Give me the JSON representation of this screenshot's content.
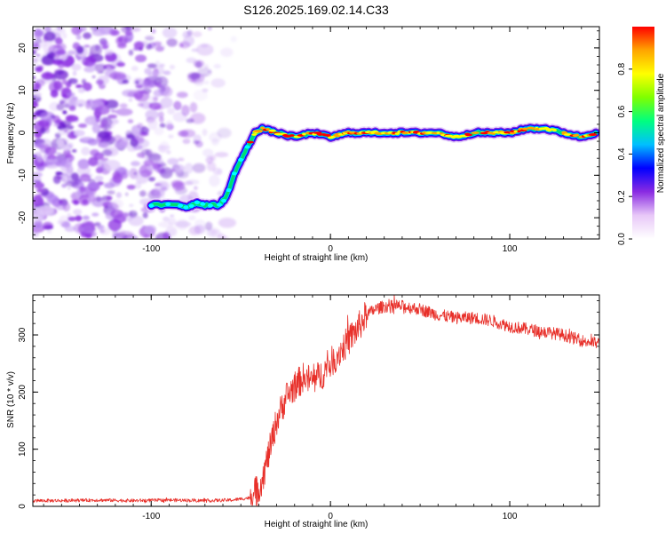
{
  "title": "S126.2025.169.02.14.C33",
  "chart_data": [
    {
      "type": "heatmap",
      "xlabel": "Height of straight line (km)",
      "ylabel": "Frequency (Hz)",
      "xlim": [
        -166,
        150
      ],
      "ylim": [
        -25,
        25
      ],
      "x_ticks": [
        -100,
        0,
        100
      ],
      "y_ticks": [
        -20,
        -10,
        0,
        10,
        20
      ],
      "colorbar": {
        "label": "Normalized spectral amplitude",
        "range": [
          0,
          1
        ],
        "ticks": [
          0.0,
          0.2,
          0.4,
          0.6,
          0.8
        ],
        "tick_labels": [
          "0.0",
          "0.2",
          "0.4",
          "0.6",
          "0.8"
        ],
        "colormap": [
          "#ffffff",
          "#e8c8f8",
          "#8a2be2",
          "#0000ff",
          "#00bfff",
          "#00ff7f",
          "#7fff00",
          "#ffff00",
          "#ffa500",
          "#ff0000"
        ]
      },
      "ridge": {
        "x": [
          -100,
          -85,
          -80,
          -75,
          -70,
          -62,
          -58,
          -53,
          -47,
          -42,
          -38,
          -30,
          -20,
          -10,
          0,
          10,
          20,
          30,
          40,
          50,
          60,
          70,
          80,
          90,
          100,
          110,
          120,
          130,
          140,
          148
        ],
        "y": [
          -17,
          -17,
          -17.5,
          -16.5,
          -17,
          -17,
          -15,
          -9,
          -4,
          0,
          1,
          0,
          -1,
          0,
          -1,
          0,
          0,
          0,
          0,
          0,
          0,
          -1,
          0,
          0,
          0,
          1,
          1,
          0,
          -1,
          0
        ]
      },
      "noise_region": [
        -166,
        -55
      ]
    },
    {
      "type": "line",
      "xlabel": "Height of straight line (km)",
      "ylabel": "SNR (10 * v/v)",
      "xlim": [
        -166,
        150
      ],
      "ylim": [
        0,
        370
      ],
      "x_ticks": [
        -100,
        0,
        100
      ],
      "y_ticks": [
        0,
        100,
        200,
        300
      ],
      "line_color": "#e8302a",
      "x": [
        -166,
        -150,
        -130,
        -110,
        -90,
        -70,
        -55,
        -45,
        -40,
        -37,
        -33,
        -30,
        -25,
        -20,
        -15,
        -10,
        -5,
        0,
        5,
        10,
        15,
        20,
        25,
        30,
        40,
        50,
        60,
        70,
        80,
        90,
        100,
        110,
        120,
        130,
        140,
        150
      ],
      "y": [
        10,
        10,
        11,
        10,
        11,
        10,
        11,
        15,
        30,
        60,
        110,
        150,
        190,
        210,
        225,
        220,
        230,
        250,
        270,
        290,
        310,
        335,
        345,
        350,
        350,
        345,
        335,
        330,
        330,
        325,
        315,
        310,
        305,
        300,
        290,
        285
      ]
    }
  ]
}
